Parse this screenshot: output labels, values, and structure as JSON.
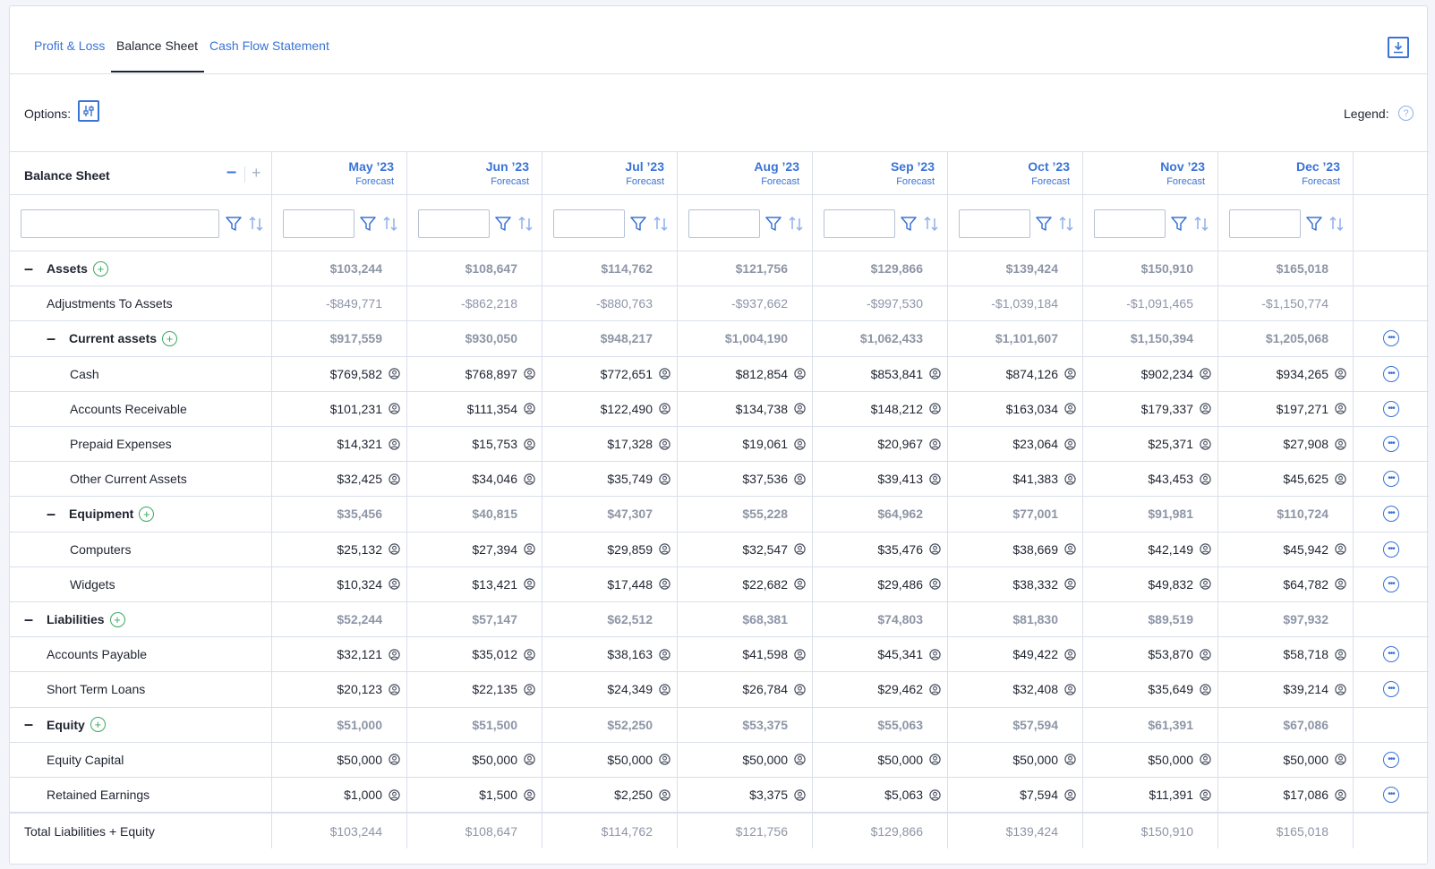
{
  "tabs": [
    {
      "label": "Profit & Loss",
      "active": false
    },
    {
      "label": "Balance Sheet",
      "active": true
    },
    {
      "label": "Cash Flow Statement",
      "active": false
    }
  ],
  "toolbar": {
    "options_label": "Options:",
    "legend_label": "Legend:",
    "legend_help": "?"
  },
  "table": {
    "title": "Balance Sheet",
    "columns": [
      {
        "month": "May ’23",
        "sub": "Forecast"
      },
      {
        "month": "Jun ’23",
        "sub": "Forecast"
      },
      {
        "month": "Jul ’23",
        "sub": "Forecast"
      },
      {
        "month": "Aug ’23",
        "sub": "Forecast"
      },
      {
        "month": "Sep ’23",
        "sub": "Forecast"
      },
      {
        "month": "Oct ’23",
        "sub": "Forecast"
      },
      {
        "month": "Nov ’23",
        "sub": "Forecast"
      },
      {
        "month": "Dec ’23",
        "sub": "Forecast"
      }
    ],
    "rows": [
      {
        "label": "Assets",
        "level": 0,
        "kind": "group",
        "collapsible": true,
        "add": true,
        "more": false,
        "values": [
          "$103,244",
          "$108,647",
          "$114,762",
          "$121,756",
          "$129,866",
          "$139,424",
          "$150,910",
          "$165,018"
        ]
      },
      {
        "label": "Adjustments To Assets",
        "level": 1,
        "kind": "neg",
        "collapsible": false,
        "add": false,
        "more": false,
        "values": [
          "-$849,771",
          "-$862,218",
          "-$880,763",
          "-$937,662",
          "-$997,530",
          "-$1,039,184",
          "-$1,091,465",
          "-$1,150,774"
        ]
      },
      {
        "label": "Current assets",
        "level": 1,
        "kind": "group",
        "collapsible": true,
        "add": true,
        "more": true,
        "values": [
          "$917,559",
          "$930,050",
          "$948,217",
          "$1,004,190",
          "$1,062,433",
          "$1,101,607",
          "$1,150,394",
          "$1,205,068"
        ]
      },
      {
        "label": "Cash",
        "level": 2,
        "kind": "input",
        "collapsible": false,
        "add": false,
        "more": true,
        "values": [
          "$769,582",
          "$768,897",
          "$772,651",
          "$812,854",
          "$853,841",
          "$874,126",
          "$902,234",
          "$934,265"
        ]
      },
      {
        "label": "Accounts Receivable",
        "level": 2,
        "kind": "input",
        "collapsible": false,
        "add": false,
        "more": true,
        "values": [
          "$101,231",
          "$111,354",
          "$122,490",
          "$134,738",
          "$148,212",
          "$163,034",
          "$179,337",
          "$197,271"
        ]
      },
      {
        "label": "Prepaid Expenses",
        "level": 2,
        "kind": "input",
        "collapsible": false,
        "add": false,
        "more": true,
        "values": [
          "$14,321",
          "$15,753",
          "$17,328",
          "$19,061",
          "$20,967",
          "$23,064",
          "$25,371",
          "$27,908"
        ]
      },
      {
        "label": "Other Current Assets",
        "level": 2,
        "kind": "input",
        "collapsible": false,
        "add": false,
        "more": true,
        "values": [
          "$32,425",
          "$34,046",
          "$35,749",
          "$37,536",
          "$39,413",
          "$41,383",
          "$43,453",
          "$45,625"
        ]
      },
      {
        "label": "Equipment",
        "level": 1,
        "kind": "group",
        "collapsible": true,
        "add": true,
        "more": true,
        "values": [
          "$35,456",
          "$40,815",
          "$47,307",
          "$55,228",
          "$64,962",
          "$77,001",
          "$91,981",
          "$110,724"
        ]
      },
      {
        "label": "Computers",
        "level": 2,
        "kind": "input",
        "collapsible": false,
        "add": false,
        "more": true,
        "values": [
          "$25,132",
          "$27,394",
          "$29,859",
          "$32,547",
          "$35,476",
          "$38,669",
          "$42,149",
          "$45,942"
        ]
      },
      {
        "label": "Widgets",
        "level": 2,
        "kind": "input",
        "collapsible": false,
        "add": false,
        "more": true,
        "values": [
          "$10,324",
          "$13,421",
          "$17,448",
          "$22,682",
          "$29,486",
          "$38,332",
          "$49,832",
          "$64,782"
        ]
      },
      {
        "label": "Liabilities",
        "level": 0,
        "kind": "group",
        "collapsible": true,
        "add": true,
        "more": false,
        "values": [
          "$52,244",
          "$57,147",
          "$62,512",
          "$68,381",
          "$74,803",
          "$81,830",
          "$89,519",
          "$97,932"
        ]
      },
      {
        "label": "Accounts Payable",
        "level": 1,
        "kind": "input",
        "collapsible": false,
        "add": false,
        "more": true,
        "values": [
          "$32,121",
          "$35,012",
          "$38,163",
          "$41,598",
          "$45,341",
          "$49,422",
          "$53,870",
          "$58,718"
        ]
      },
      {
        "label": "Short Term Loans",
        "level": 1,
        "kind": "input",
        "collapsible": false,
        "add": false,
        "more": true,
        "values": [
          "$20,123",
          "$22,135",
          "$24,349",
          "$26,784",
          "$29,462",
          "$32,408",
          "$35,649",
          "$39,214"
        ]
      },
      {
        "label": "Equity",
        "level": 0,
        "kind": "group",
        "collapsible": true,
        "add": true,
        "more": false,
        "values": [
          "$51,000",
          "$51,500",
          "$52,250",
          "$53,375",
          "$55,063",
          "$57,594",
          "$61,391",
          "$67,086"
        ]
      },
      {
        "label": "Equity Capital",
        "level": 1,
        "kind": "input",
        "collapsible": false,
        "add": false,
        "more": true,
        "values": [
          "$50,000",
          "$50,000",
          "$50,000",
          "$50,000",
          "$50,000",
          "$50,000",
          "$50,000",
          "$50,000"
        ]
      },
      {
        "label": "Retained Earnings",
        "level": 1,
        "kind": "input",
        "collapsible": false,
        "add": false,
        "more": true,
        "values": [
          "$1,000",
          "$1,500",
          "$2,250",
          "$3,375",
          "$5,063",
          "$7,594",
          "$11,391",
          "$17,086"
        ]
      }
    ],
    "total": {
      "label": "Total Liabilities + Equity",
      "values": [
        "$103,244",
        "$108,647",
        "$114,762",
        "$121,756",
        "$129,866",
        "$139,424",
        "$150,910",
        "$165,018"
      ]
    }
  },
  "colors": {
    "accent": "#3a73d6",
    "add": "#3aa860",
    "border": "#d9dfec",
    "muted": "#8d95a6"
  },
  "icons": {
    "download": "download-icon",
    "options": "sliders-icon",
    "filter": "filter-icon",
    "sort": "sort-icon",
    "person": "person-icon",
    "more": "more-icon"
  }
}
